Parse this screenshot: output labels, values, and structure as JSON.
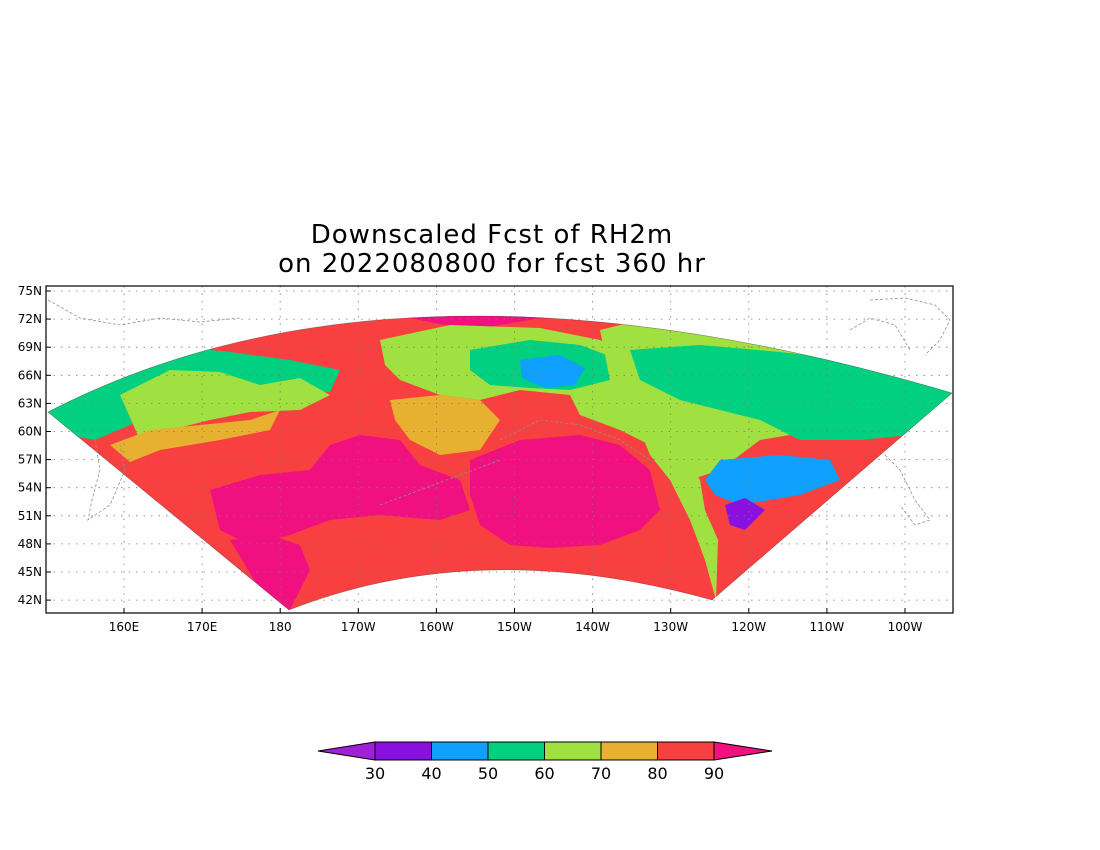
{
  "title": {
    "line1": "Downscaled Fcst of RH2m",
    "line2": "on 2022080800 for fcst 360 hr"
  },
  "map": {
    "projection": "polar-stereographic sector (lat/lon grid)",
    "lat_range": [
      42,
      75
    ],
    "lon_range_east": [
      168,
      265
    ],
    "lat_ticks": [
      "75N",
      "72N",
      "69N",
      "66N",
      "63N",
      "60N",
      "57N",
      "54N",
      "51N",
      "48N",
      "45N",
      "42N"
    ],
    "lon_ticks": [
      "160E",
      "170E",
      "180",
      "170W",
      "160W",
      "150W",
      "140W",
      "130W",
      "120W",
      "110W",
      "100W"
    ],
    "gridlines": "dotted",
    "coastlines": "dashed gray",
    "variable": "RH2m"
  },
  "colorbar": {
    "levels": [
      "30",
      "40",
      "50",
      "60",
      "70",
      "80",
      "90"
    ],
    "colors": [
      "#a020d8",
      "#8a10e0",
      "#10a0ff",
      "#00d080",
      "#a0e040",
      "#e8b030",
      "#f84040",
      "#f01080"
    ],
    "extend": "both"
  },
  "field_colors": {
    "magenta": "#f01080",
    "red": "#f84040",
    "orange": "#e8b030",
    "lime": "#a0e040",
    "green": "#00d080",
    "blue": "#10a0ff",
    "purple": "#8a10e0"
  }
}
